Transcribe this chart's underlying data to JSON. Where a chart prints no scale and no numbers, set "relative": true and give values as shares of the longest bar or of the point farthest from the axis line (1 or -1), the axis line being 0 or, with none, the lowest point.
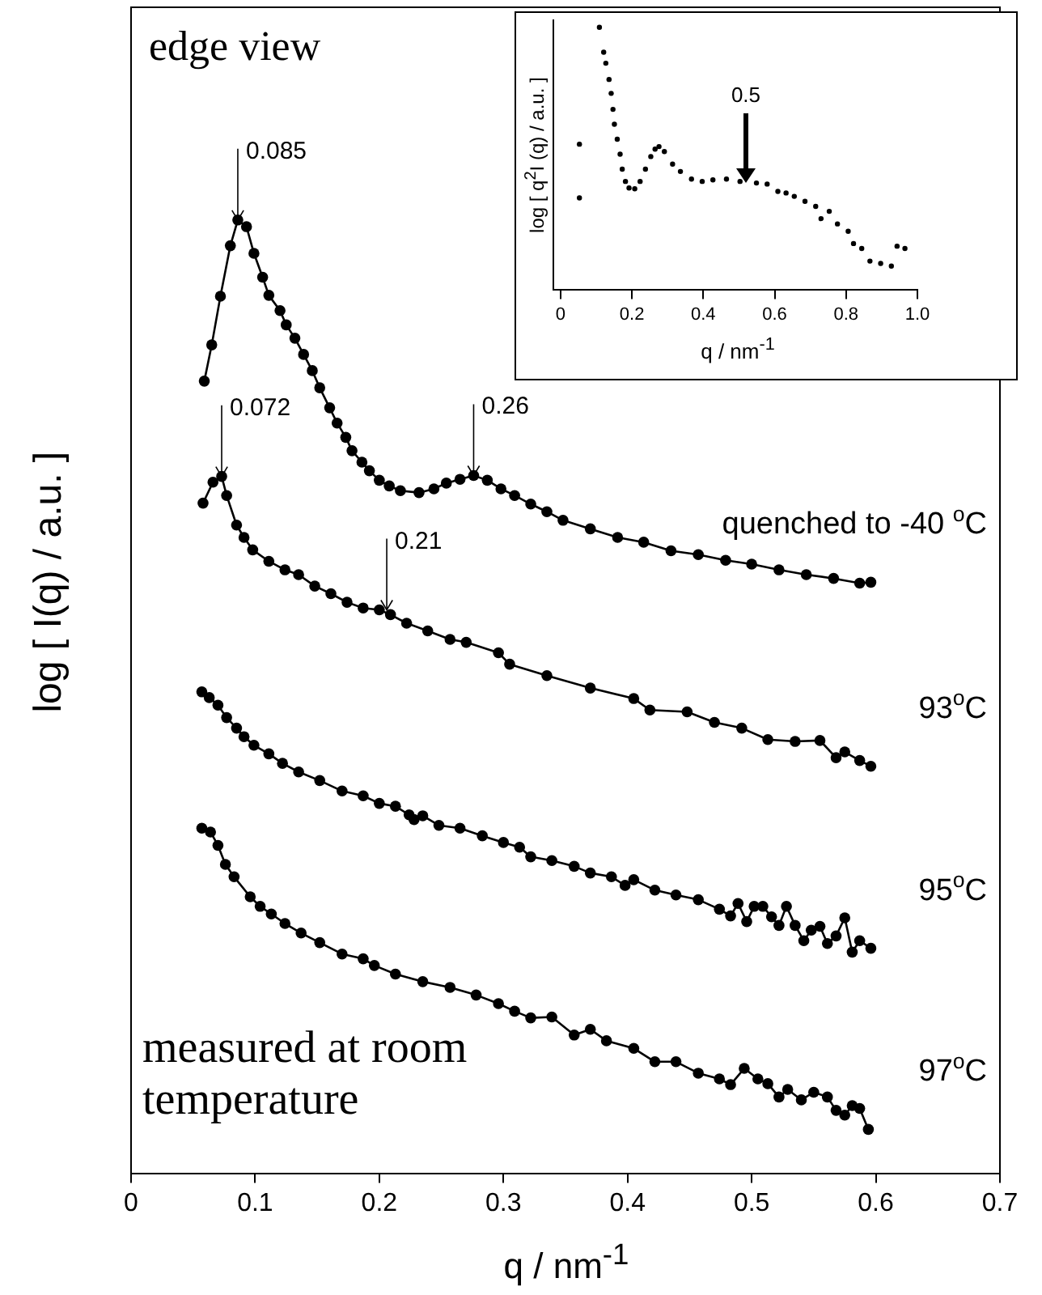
{
  "chart_data": [
    {
      "type": "line",
      "relative": true,
      "xlabel": "q / nm$^{-1}$",
      "ylabel": "log [ I(q) / a.u. ]",
      "xlim": [
        0,
        0.7
      ],
      "xticks": [
        0,
        0.1,
        0.2,
        0.3,
        0.4,
        0.5,
        0.6,
        0.7
      ],
      "tick_labels": "x",
      "marker": "circle",
      "line_style": "solid",
      "annotations": [
        "edge view",
        "measured at room temperature",
        {
          "text": "0.085",
          "x": 0.086,
          "y": 1.0
        },
        {
          "text": "0.072",
          "x": 0.073,
          "y": 0.731
        },
        {
          "text": "0.26",
          "x": 0.276,
          "y": 0.732
        },
        {
          "text": "0.21",
          "x": 0.206,
          "y": 0.591
        }
      ],
      "series": [
        {
          "name": "quenched to -40 $^{o}$C",
          "color": "#000000",
          "x": [
            0.059,
            0.065,
            0.072,
            0.08,
            0.086,
            0.093,
            0.099,
            0.106,
            0.111,
            0.12,
            0.125,
            0.132,
            0.139,
            0.146,
            0.152,
            0.16,
            0.166,
            0.173,
            0.178,
            0.186,
            0.192,
            0.2,
            0.208,
            0.217,
            0.232,
            0.244,
            0.254,
            0.265,
            0.276,
            0.287,
            0.298,
            0.309,
            0.322,
            0.335,
            0.348,
            0.37,
            0.392,
            0.413,
            0.435,
            0.457,
            0.479,
            0.5,
            0.522,
            0.544,
            0.566,
            0.587,
            0.596
          ],
          "values": [
            0.831,
            0.869,
            0.92,
            0.973,
            1.0,
            0.993,
            0.965,
            0.94,
            0.921,
            0.905,
            0.89,
            0.876,
            0.859,
            0.842,
            0.824,
            0.803,
            0.787,
            0.772,
            0.758,
            0.746,
            0.737,
            0.727,
            0.721,
            0.716,
            0.714,
            0.718,
            0.724,
            0.728,
            0.732,
            0.727,
            0.718,
            0.711,
            0.702,
            0.694,
            0.685,
            0.676,
            0.667,
            0.662,
            0.653,
            0.649,
            0.643,
            0.639,
            0.633,
            0.628,
            0.624,
            0.619,
            0.62
          ]
        },
        {
          "name": "93$^{o}$C",
          "color": "#000000",
          "x": [
            0.058,
            0.066,
            0.073,
            0.077,
            0.085,
            0.091,
            0.098,
            0.111,
            0.124,
            0.135,
            0.148,
            0.161,
            0.174,
            0.187,
            0.2,
            0.209,
            0.222,
            0.239,
            0.257,
            0.27,
            0.296,
            0.305,
            0.335,
            0.37,
            0.405,
            0.418,
            0.448,
            0.47,
            0.492,
            0.513,
            0.535,
            0.555,
            0.568,
            0.575,
            0.587,
            0.596
          ],
          "values": [
            0.703,
            0.725,
            0.731,
            0.711,
            0.68,
            0.667,
            0.654,
            0.642,
            0.633,
            0.628,
            0.616,
            0.608,
            0.599,
            0.593,
            0.591,
            0.586,
            0.577,
            0.569,
            0.56,
            0.557,
            0.546,
            0.534,
            0.522,
            0.509,
            0.498,
            0.486,
            0.484,
            0.473,
            0.467,
            0.455,
            0.453,
            0.454,
            0.436,
            0.442,
            0.433,
            0.427
          ]
        },
        {
          "name": "95$^{o}$C",
          "color": "#000000",
          "x": [
            0.057,
            0.063,
            0.07,
            0.077,
            0.085,
            0.091,
            0.099,
            0.111,
            0.122,
            0.135,
            0.152,
            0.17,
            0.187,
            0.2,
            0.213,
            0.224,
            0.228,
            0.235,
            0.248,
            0.265,
            0.283,
            0.3,
            0.313,
            0.322,
            0.339,
            0.357,
            0.37,
            0.387,
            0.398,
            0.405,
            0.422,
            0.439,
            0.457,
            0.474,
            0.483,
            0.489,
            0.496,
            0.502,
            0.509,
            0.516,
            0.522,
            0.528,
            0.535,
            0.542,
            0.548,
            0.555,
            0.561,
            0.568,
            0.575,
            0.581,
            0.587,
            0.596
          ],
          "values": [
            0.505,
            0.499,
            0.491,
            0.478,
            0.467,
            0.458,
            0.449,
            0.44,
            0.43,
            0.421,
            0.412,
            0.401,
            0.396,
            0.388,
            0.385,
            0.376,
            0.371,
            0.375,
            0.365,
            0.362,
            0.354,
            0.347,
            0.342,
            0.332,
            0.328,
            0.322,
            0.315,
            0.311,
            0.302,
            0.308,
            0.297,
            0.292,
            0.287,
            0.277,
            0.27,
            0.283,
            0.264,
            0.28,
            0.28,
            0.269,
            0.26,
            0.28,
            0.26,
            0.244,
            0.255,
            0.259,
            0.241,
            0.249,
            0.268,
            0.232,
            0.244,
            0.236
          ]
        },
        {
          "name": "97$^{o}$C",
          "color": "#000000",
          "x": [
            0.057,
            0.064,
            0.07,
            0.076,
            0.083,
            0.096,
            0.104,
            0.113,
            0.124,
            0.137,
            0.152,
            0.17,
            0.187,
            0.196,
            0.213,
            0.235,
            0.257,
            0.278,
            0.296,
            0.309,
            0.322,
            0.339,
            0.357,
            0.37,
            0.383,
            0.405,
            0.422,
            0.439,
            0.457,
            0.474,
            0.483,
            0.494,
            0.505,
            0.513,
            0.522,
            0.529,
            0.54,
            0.55,
            0.561,
            0.568,
            0.575,
            0.581,
            0.587,
            0.594
          ],
          "values": [
            0.362,
            0.358,
            0.344,
            0.324,
            0.311,
            0.29,
            0.28,
            0.272,
            0.262,
            0.252,
            0.242,
            0.23,
            0.225,
            0.218,
            0.209,
            0.201,
            0.195,
            0.187,
            0.178,
            0.17,
            0.163,
            0.164,
            0.145,
            0.151,
            0.139,
            0.131,
            0.117,
            0.117,
            0.105,
            0.099,
            0.093,
            0.11,
            0.099,
            0.094,
            0.08,
            0.088,
            0.077,
            0.085,
            0.08,
            0.066,
            0.061,
            0.071,
            0.068,
            0.046
          ]
        }
      ]
    },
    {
      "type": "scatter",
      "relative": true,
      "xlabel": "q / nm$^{-1}$",
      "ylabel": "log [ q$^{2}$I (q) / a.u. ]",
      "xlim": [
        -0.02,
        1.0
      ],
      "xticks": [
        0,
        0.2,
        0.4,
        0.6,
        0.8,
        {
          "value": 1.0,
          "label": "1.0"
        }
      ],
      "tick_labels": "x",
      "marker": "circle",
      "annotations": [
        "0.5"
      ],
      "series": [
        {
          "color": "#000000",
          "x": [
            0.053,
            0.053,
            0.109,
            0.121,
            0.127,
            0.136,
            0.142,
            0.147,
            0.151,
            0.159,
            0.167,
            0.173,
            0.182,
            0.192,
            0.208,
            0.223,
            0.238,
            0.253,
            0.265,
            0.276,
            0.291,
            0.314,
            0.336,
            0.367,
            0.397,
            0.427,
            0.465,
            0.503,
            0.549,
            0.579,
            0.609,
            0.632,
            0.655,
            0.685,
            0.715,
            0.73,
            0.753,
            0.776,
            0.806,
            0.821,
            0.844,
            0.867,
            0.897,
            0.927,
            0.943,
            0.965
          ],
          "values": [
            0.554,
            0.349,
            1.0,
            0.905,
            0.863,
            0.801,
            0.748,
            0.687,
            0.63,
            0.573,
            0.516,
            0.459,
            0.412,
            0.387,
            0.384,
            0.412,
            0.459,
            0.507,
            0.535,
            0.545,
            0.526,
            0.478,
            0.45,
            0.421,
            0.412,
            0.418,
            0.421,
            0.412,
            0.406,
            0.402,
            0.374,
            0.368,
            0.355,
            0.336,
            0.317,
            0.27,
            0.298,
            0.25,
            0.222,
            0.175,
            0.156,
            0.108,
            0.099,
            0.089,
            0.165,
            0.156
          ]
        }
      ]
    }
  ]
}
